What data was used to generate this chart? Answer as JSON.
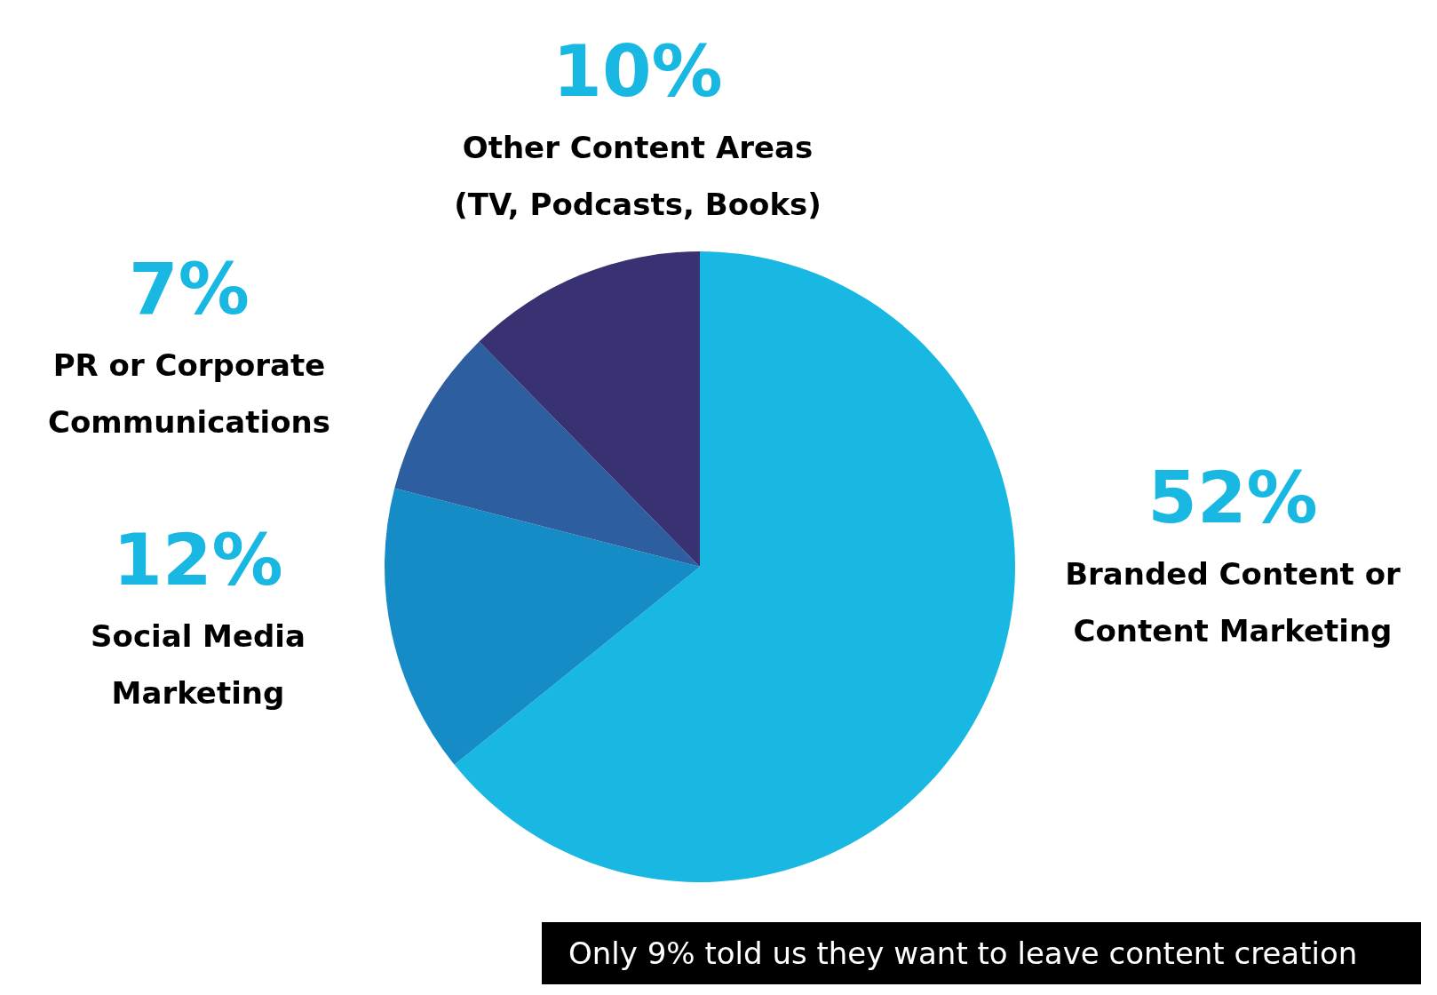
{
  "chart_data": {
    "type": "pie",
    "categories": [
      "Branded Content or Content Marketing",
      "Social Media Marketing",
      "PR or Corporate Communications",
      "Other Content Areas (TV, Podcasts, Books)"
    ],
    "values": [
      52,
      12,
      7,
      10
    ],
    "value_labels": [
      "52%",
      "12%",
      "7%",
      "10%"
    ],
    "colors": [
      "#19b8e2",
      "#168cc7",
      "#2c5ea0",
      "#383272"
    ],
    "legend": false,
    "annotations": [
      "Only 9% told us they want to leave content creation"
    ]
  }
}
